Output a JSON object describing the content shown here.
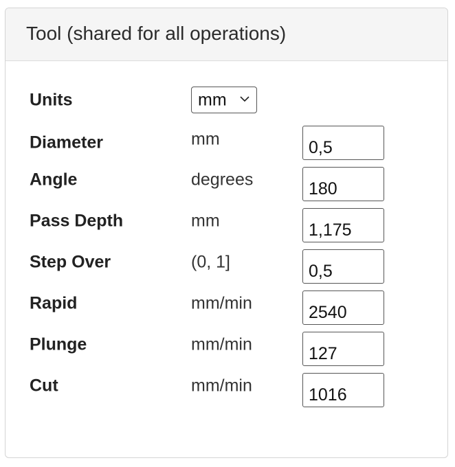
{
  "panel": {
    "title": "Tool (shared for all operations)"
  },
  "units": {
    "label": "Units",
    "selected": "mm",
    "icon": "chevron-down-icon"
  },
  "rows": [
    {
      "label": "Diameter",
      "unit": "mm",
      "value": "0,5"
    },
    {
      "label": "Angle",
      "unit": "degrees",
      "value": "180"
    },
    {
      "label": "Pass Depth",
      "unit": "mm",
      "value": "1,175"
    },
    {
      "label": "Step Over",
      "unit": "(0, 1]",
      "value": "0,5"
    },
    {
      "label": "Rapid",
      "unit": "mm/min",
      "value": "2540"
    },
    {
      "label": "Plunge",
      "unit": "mm/min",
      "value": "127"
    },
    {
      "label": "Cut",
      "unit": "mm/min",
      "value": "1016"
    }
  ]
}
